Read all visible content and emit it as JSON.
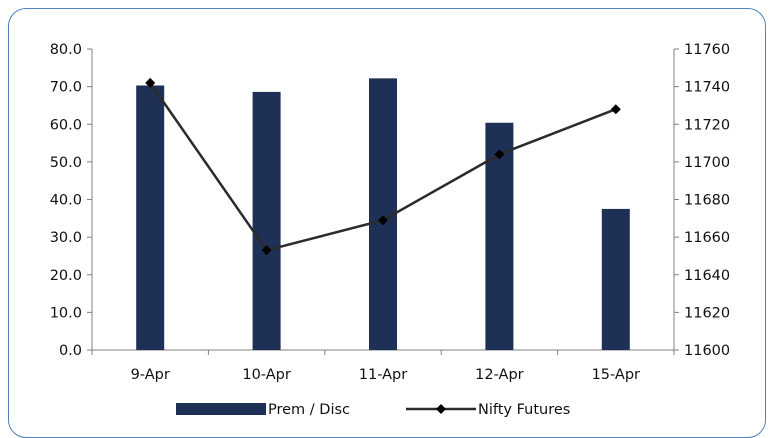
{
  "chart_data": {
    "type": "bar",
    "categories": [
      "9-Apr",
      "10-Apr",
      "11-Apr",
      "12-Apr",
      "15-Apr"
    ],
    "series": [
      {
        "name": "Prem / Disc",
        "type": "bar",
        "axis": "left",
        "values": [
          70.3,
          68.6,
          72.2,
          60.4,
          37.5
        ]
      },
      {
        "name": "Nifty Futures",
        "type": "line",
        "axis": "right",
        "values": [
          11742,
          11653,
          11669,
          11704,
          11728
        ]
      }
    ],
    "ylim_left": [
      0,
      80
    ],
    "ylim_right": [
      11600,
      11760
    ],
    "yticks_left": [
      "0.0",
      "10.0",
      "20.0",
      "30.0",
      "40.0",
      "50.0",
      "60.0",
      "70.0",
      "80.0"
    ],
    "yticks_right": [
      "11600",
      "11620",
      "11640",
      "11660",
      "11680",
      "11700",
      "11720",
      "11740",
      "11760"
    ],
    "legend_position": "bottom",
    "grid": false,
    "colors": {
      "bar": "#1f3057",
      "line": "#2b2b2b",
      "marker": "#000000",
      "axis": "#808080",
      "frame": "#4f81bd"
    }
  }
}
